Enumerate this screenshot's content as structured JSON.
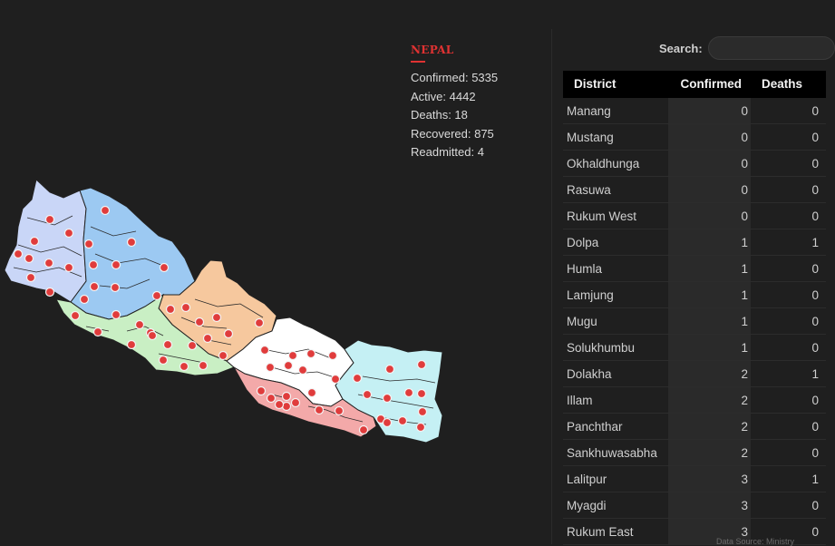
{
  "stats": {
    "country": "NEPAL",
    "lines": [
      "Confirmed: 5335",
      "Active: 4442",
      "Deaths: 18",
      "Recovered: 875",
      "Readmitted: 4"
    ]
  },
  "search": {
    "label": "Search:",
    "value": "",
    "placeholder": ""
  },
  "table": {
    "headers": [
      "District",
      "Confirmed",
      "Deaths"
    ],
    "rows": [
      [
        "Manang",
        "0",
        "0"
      ],
      [
        "Mustang",
        "0",
        "0"
      ],
      [
        "Okhaldhunga",
        "0",
        "0"
      ],
      [
        "Rasuwa",
        "0",
        "0"
      ],
      [
        "Rukum West",
        "0",
        "0"
      ],
      [
        "Dolpa",
        "1",
        "1"
      ],
      [
        "Humla",
        "1",
        "0"
      ],
      [
        "Lamjung",
        "1",
        "0"
      ],
      [
        "Mugu",
        "1",
        "0"
      ],
      [
        "Solukhumbu",
        "1",
        "0"
      ],
      [
        "Dolakha",
        "2",
        "1"
      ],
      [
        "Illam",
        "2",
        "0"
      ],
      [
        "Panchthar",
        "2",
        "0"
      ],
      [
        "Sankhuwasabha",
        "2",
        "0"
      ],
      [
        "Lalitpur",
        "3",
        "1"
      ],
      [
        "Myagdi",
        "3",
        "0"
      ],
      [
        "Rukum East",
        "3",
        "0"
      ]
    ]
  },
  "footer": {
    "text": "Data Source: Ministry"
  },
  "colors": {
    "background": "#1f1f1f",
    "accent": "#e03232",
    "dot": "#e03c3c",
    "province_colors": [
      "#c9d6f7",
      "#9cc9f2",
      "#f6c89e",
      "#c9efc4",
      "#ffffff",
      "#f3a9a9",
      "#c5f0f4"
    ]
  }
}
